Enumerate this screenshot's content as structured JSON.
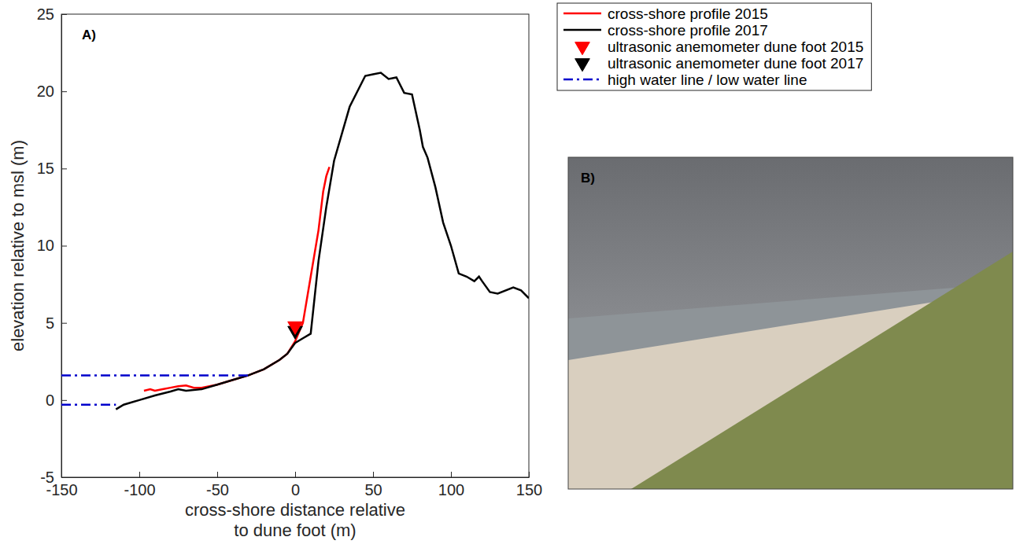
{
  "chart_data": {
    "type": "line",
    "title": "A)",
    "x_label": "cross-shore distance relative to dune foot (m)",
    "y_label": "elevation relative to msl (m)",
    "xlim": [
      -150,
      150
    ],
    "xticks": [
      -150,
      -100,
      -50,
      0,
      50,
      100,
      150
    ],
    "ylim": [
      -5,
      25
    ],
    "yticks": [
      -5,
      0,
      5,
      10,
      15,
      20,
      25
    ],
    "grid": false,
    "legend": "right",
    "series": [
      {
        "name": "cross-shore profile 2015",
        "color": "#ff0000",
        "type": "line",
        "line_style": "solid",
        "x": [
          -97,
          -93,
          -90,
          -85,
          -80,
          -75,
          -70,
          -65,
          -60,
          -55,
          -50,
          -40,
          -30,
          -20,
          -10,
          -5,
          0,
          5,
          10,
          15,
          18,
          20,
          22
        ],
        "values": [
          0.6,
          0.7,
          0.6,
          0.7,
          0.8,
          0.9,
          0.95,
          0.8,
          0.8,
          0.9,
          1.0,
          1.3,
          1.6,
          2.0,
          2.6,
          3.0,
          3.8,
          5,
          8,
          11,
          13.5,
          14.5,
          15.1
        ]
      },
      {
        "name": "cross-shore profile 2017",
        "color": "#000000",
        "type": "line",
        "line_style": "solid",
        "x": [
          -115,
          -110,
          -100,
          -90,
          -80,
          -75,
          -70,
          -60,
          -50,
          -40,
          -30,
          -20,
          -10,
          -5,
          0,
          5,
          10,
          15,
          20,
          25,
          35,
          45,
          50,
          55,
          60,
          65,
          70,
          75,
          80,
          82,
          85,
          90,
          95,
          100,
          105,
          110,
          115,
          118,
          120,
          125,
          130,
          140,
          145,
          150
        ],
        "values": [
          -0.6,
          -0.3,
          0,
          0.3,
          0.55,
          0.7,
          0.6,
          0.7,
          1.0,
          1.3,
          1.6,
          2.0,
          2.6,
          3.0,
          3.7,
          4.0,
          4.3,
          9,
          12.5,
          15.5,
          19,
          21,
          21.1,
          21.2,
          20.8,
          20.9,
          19.9,
          19.8,
          17.5,
          16.4,
          15.7,
          13.8,
          11.5,
          10,
          8.2,
          8,
          7.7,
          8,
          7.7,
          7,
          6.9,
          7.3,
          7.1,
          6.6
        ]
      },
      {
        "name": "ultrasonic anemometer dune foot 2015",
        "color": "#ff0000",
        "type": "scatter",
        "marker": "triangle-down",
        "x": [
          0
        ],
        "values": [
          4.8
        ]
      },
      {
        "name": "ultrasonic anemometer dune foot 2017",
        "color": "#000000",
        "type": "scatter",
        "marker": "triangle-down",
        "x": [
          0
        ],
        "values": [
          4.5
        ]
      },
      {
        "name": "high water line / low water line",
        "color": "#0000cc",
        "type": "line",
        "line_style": "dashdot",
        "x": [
          -150,
          -30,
          null,
          -150,
          -115
        ],
        "values": [
          1.6,
          1.6,
          null,
          -0.3,
          -0.3
        ]
      }
    ]
  },
  "image": {
    "label": "B)"
  }
}
